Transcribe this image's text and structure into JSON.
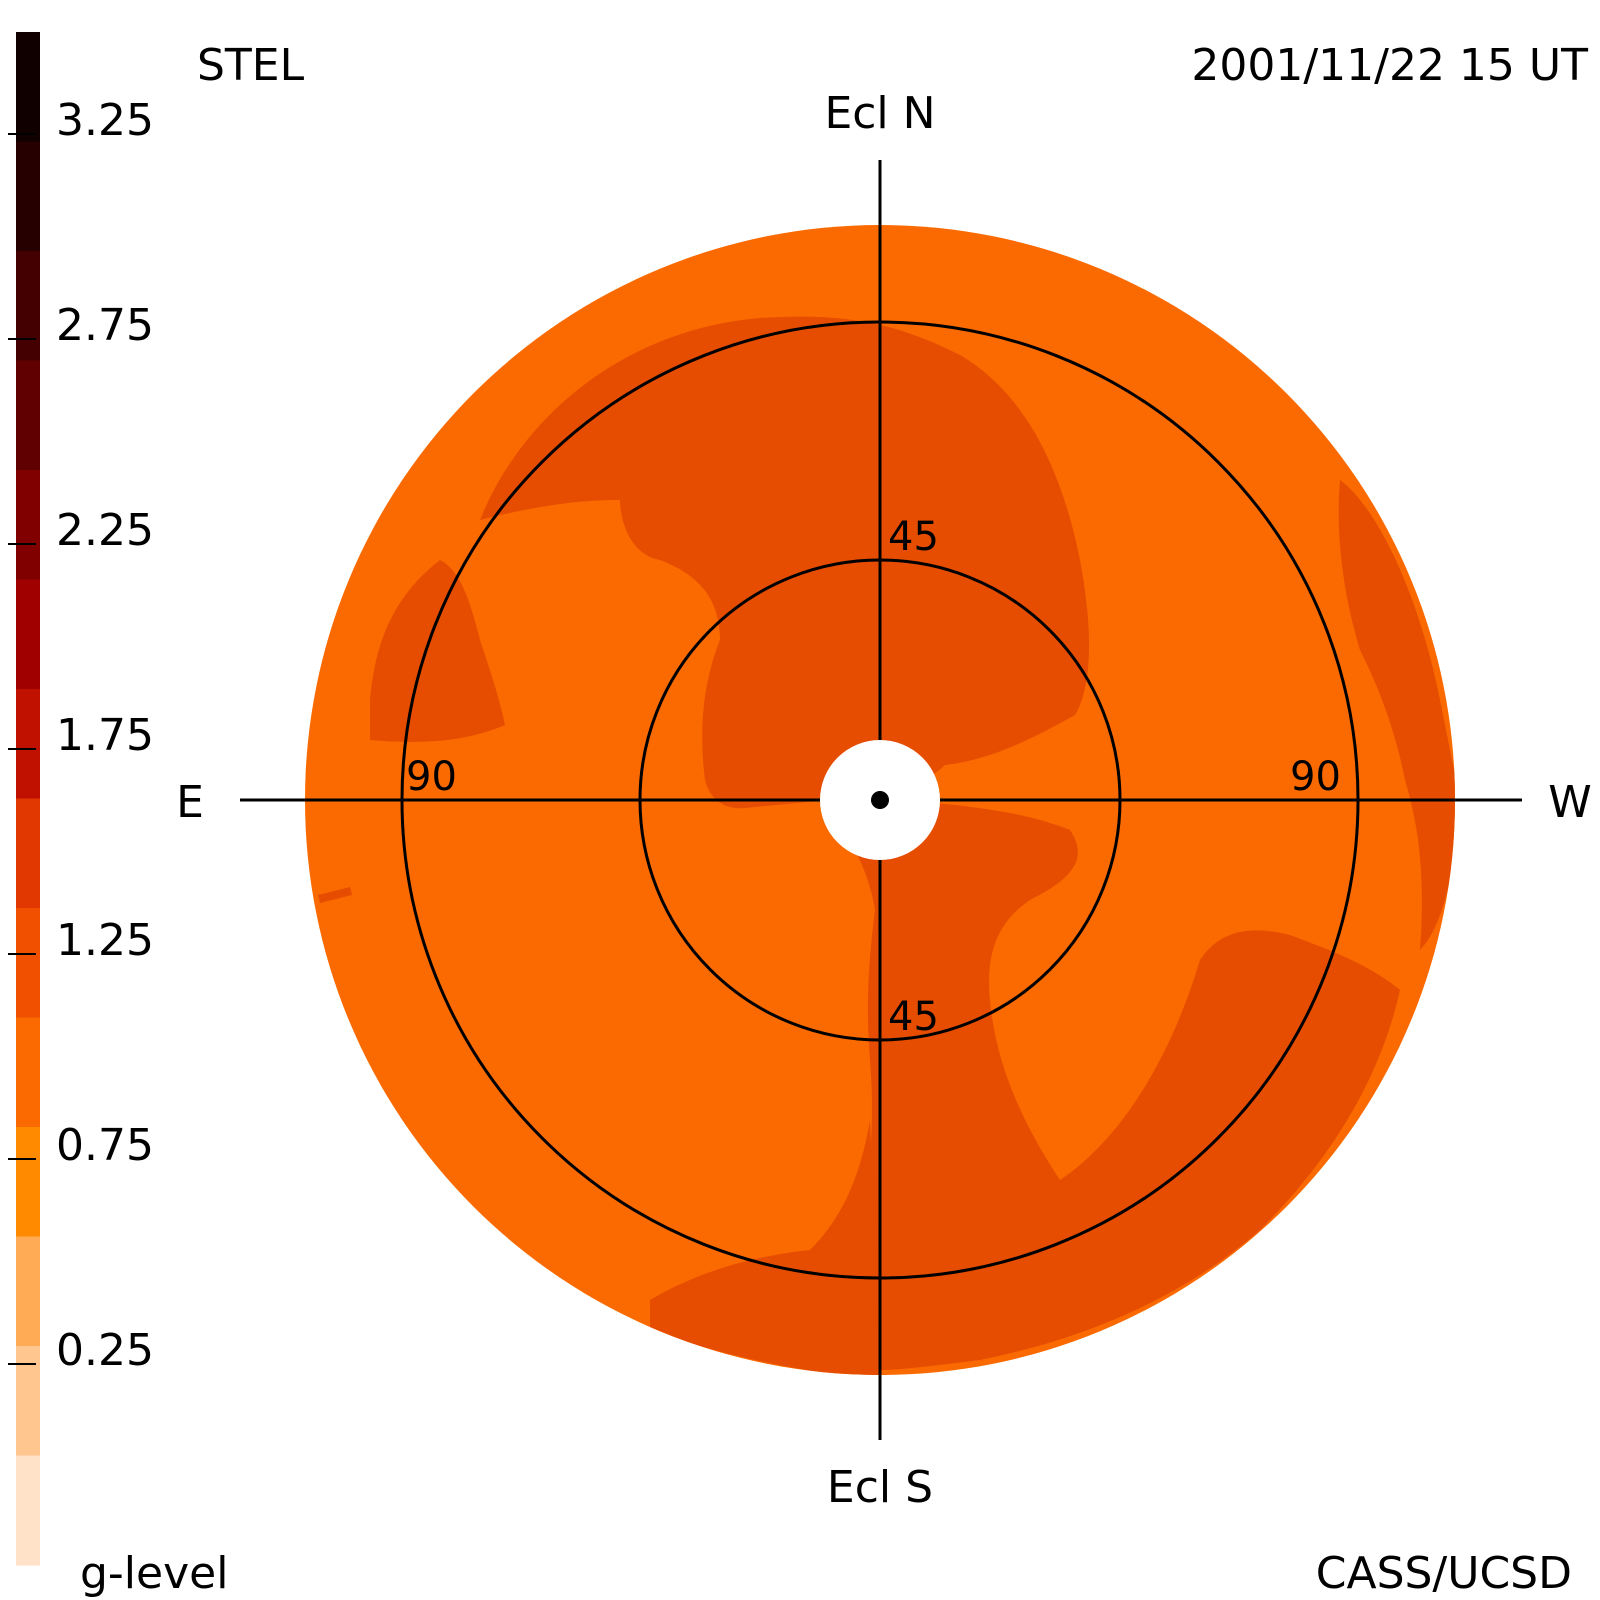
{
  "header": {
    "instrument": "STEL",
    "timestamp": "2001/11/22 15 UT"
  },
  "footer": {
    "credit": "CASS/UCSD"
  },
  "colorbar": {
    "title": "g-level",
    "tick_labels": [
      "3.25",
      "2.75",
      "2.25",
      "1.75",
      "1.25",
      "0.75",
      "0.25"
    ],
    "swatches_top_to_bottom": [
      "#100000",
      "#260000",
      "#440000",
      "#600000",
      "#800000",
      "#a00000",
      "#c01000",
      "#e03800",
      "#f05000",
      "#fa6a00",
      "#ff8a00",
      "#ffaa55",
      "#ffc690",
      "#ffe2c8"
    ]
  },
  "map": {
    "directions": {
      "north": "Ecl N",
      "south": "Ecl S",
      "east": "E",
      "west": "W"
    },
    "elongation_rings": [
      {
        "elongation_deg": 45,
        "labels": [
          "45",
          "45"
        ]
      },
      {
        "elongation_deg": 90,
        "labels": [
          "90",
          "90"
        ]
      }
    ],
    "fill_colors": {
      "background_level": "#fa6a00",
      "enhanced_level": "#e64d00",
      "sun_occulter": "#ffffff"
    }
  }
}
